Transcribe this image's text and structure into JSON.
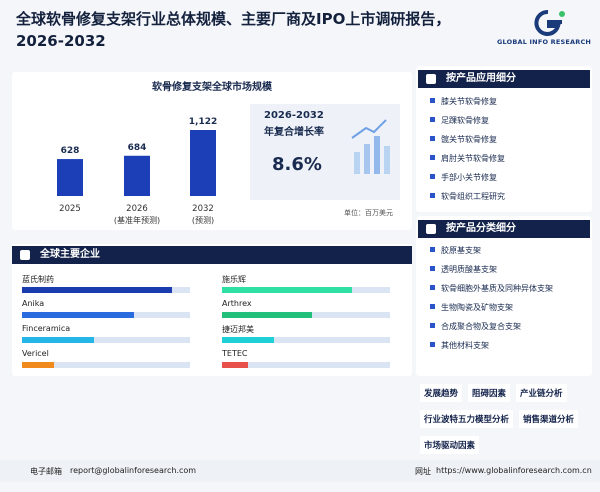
{
  "header": {
    "title": "全球软骨修复支架行业总体规模、主要厂商及IPO上市调研报告，2026-2032",
    "logo": "GLOBAL INFO RESEARCH"
  },
  "chart_data": {
    "type": "bar",
    "title": "软骨修复支架全球市场规模",
    "categories": [
      "2025",
      "2026",
      "2032"
    ],
    "category_notes": [
      null,
      "(基准年预测)",
      "(预测)"
    ],
    "values": [
      628,
      684,
      1122
    ],
    "value_labels": [
      "628",
      "684",
      "1,122"
    ],
    "color": "#1c3fb8",
    "unit": "单位：百万美元"
  },
  "cagr": {
    "period": "2026-2032",
    "label": "年复合增长率",
    "value": "8.6%"
  },
  "companies": {
    "title": "全球主要企业",
    "items": [
      {
        "name": "蓝氏制药",
        "color": "#1a3cae"
      },
      {
        "name": "Anika",
        "color": "#2a6be0"
      },
      {
        "name": "Finceramica",
        "color": "#24b6e6"
      },
      {
        "name": "Vericel",
        "color": "#f08a1c"
      },
      {
        "name": "施乐辉",
        "color": "#2ee0a4"
      },
      {
        "name": "Arthrex",
        "color": "#22c07a"
      },
      {
        "name": "捷迈邦美",
        "color": "#1fd0d6"
      },
      {
        "name": "TETEC",
        "color": "#e8504a"
      }
    ]
  },
  "application": {
    "title": "按产品应用细分",
    "items": [
      "膝关节软骨修复",
      "足踝软骨修复",
      "髋关节软骨修复",
      "肩肘关节软骨修复",
      "手部小关节修复",
      "软骨组织工程研究"
    ]
  },
  "type_segments": {
    "title": "按产品分类细分",
    "items": [
      "胶原基支架",
      "透明质酸基支架",
      "软骨细胞外基质及同种异体支架",
      "生物陶瓷及矿物支架",
      "合成聚合物及复合支架",
      "其他材料支架"
    ]
  },
  "tags": [
    "发展趋势",
    "阻碍因素",
    "产业链分析",
    "行业波特五力模型分析",
    "销售渠道分析",
    "市场驱动因素"
  ],
  "footer": {
    "email_label": "电子邮箱",
    "email": "report@globalinforesearch.com",
    "web_label": "网址",
    "web": "https://www.globalinforesearch.com.cn"
  }
}
